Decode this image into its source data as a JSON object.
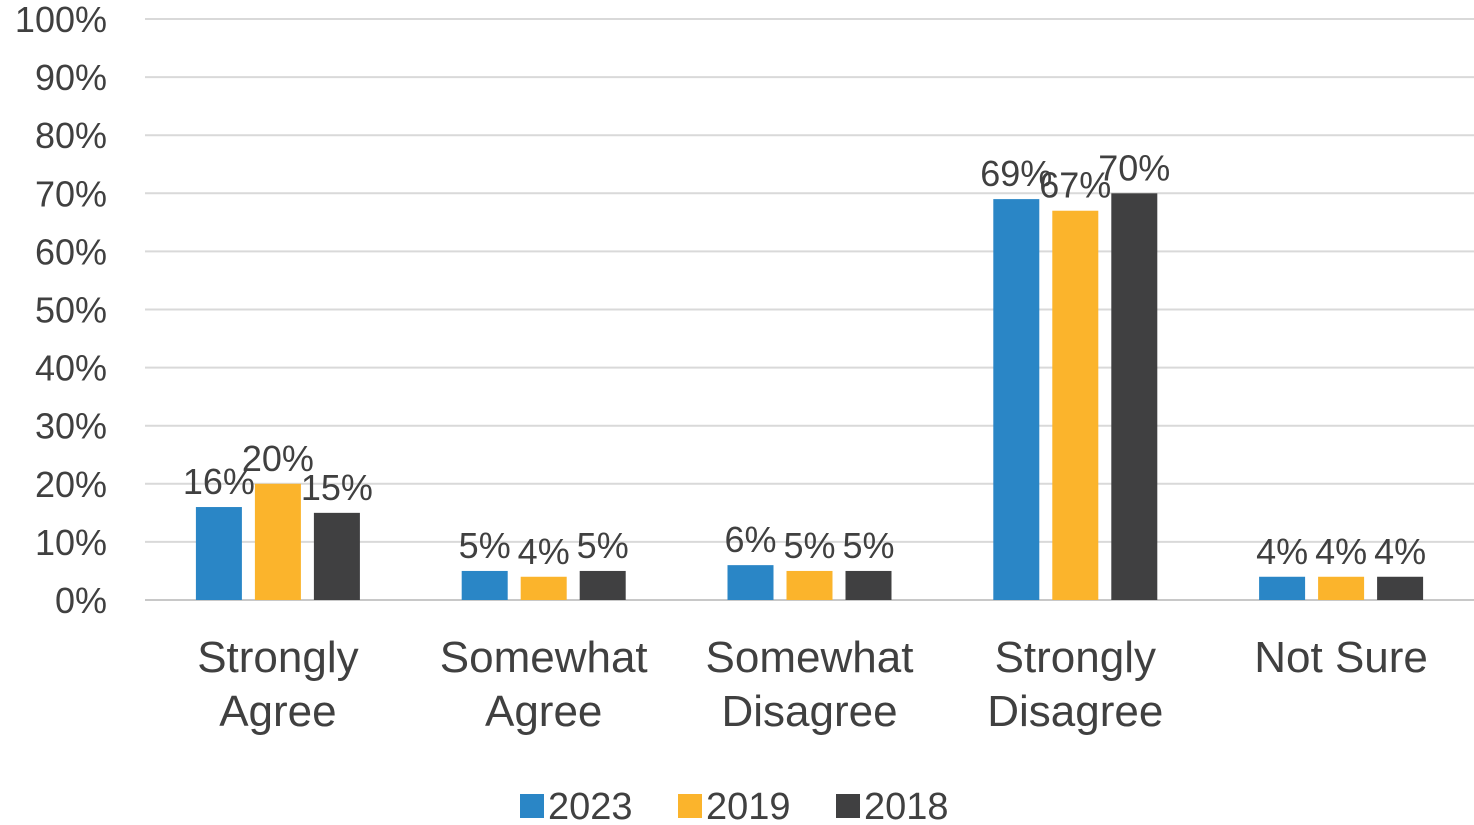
{
  "chart_data": {
    "type": "bar",
    "categories": [
      [
        "Strongly",
        "Agree"
      ],
      [
        "Somewhat",
        "Agree"
      ],
      [
        "Somewhat",
        "Disagree"
      ],
      [
        "Strongly",
        "Disagree"
      ],
      [
        "Not Sure"
      ]
    ],
    "series": [
      {
        "name": "2023",
        "color": "#2a86c6",
        "values": [
          16,
          5,
          6,
          69,
          4
        ],
        "labels": [
          "16%",
          "5%",
          "6%",
          "69%",
          "4%"
        ]
      },
      {
        "name": "2019",
        "color": "#fbb42c",
        "values": [
          20,
          4,
          5,
          67,
          4
        ],
        "labels": [
          "20%",
          "4%",
          "5%",
          "67%",
          "4%"
        ]
      },
      {
        "name": "2018",
        "color": "#404041",
        "values": [
          15,
          5,
          5,
          70,
          4
        ],
        "labels": [
          "15%",
          "5%",
          "5%",
          "70%",
          "4%"
        ]
      }
    ],
    "ylim": [
      0,
      100
    ],
    "y_ticks": [
      "0%",
      "10%",
      "20%",
      "30%",
      "40%",
      "50%",
      "60%",
      "70%",
      "80%",
      "90%",
      "100%"
    ],
    "grid": true,
    "legend_position": "bottom"
  }
}
